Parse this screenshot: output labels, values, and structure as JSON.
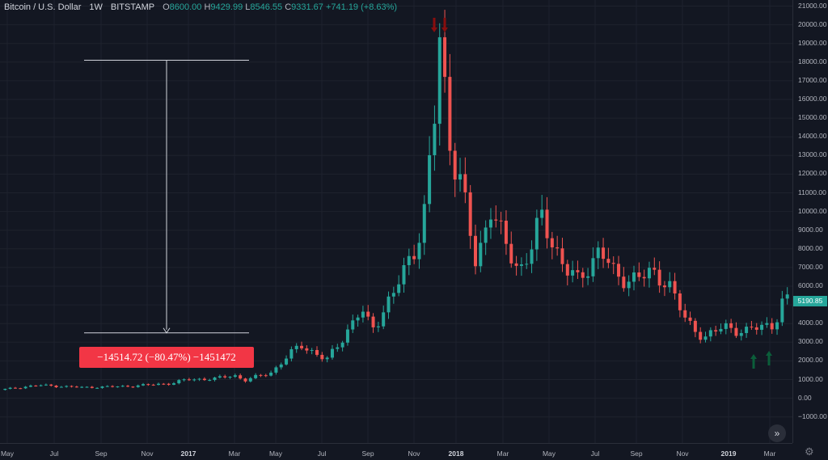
{
  "header": {
    "symbol": "Bitcoin / U.S. Dollar",
    "interval": "1W",
    "exchange": "BITSTAMP",
    "open_label": "O",
    "open": "8600.00",
    "high_label": "H",
    "high": "9429.99",
    "low_label": "L",
    "low": "8546.55",
    "close_label": "C",
    "close": "9331.67",
    "change": "+741.19 (+8.63%)"
  },
  "price_axis": {
    "labels": [
      "21000.00",
      "20000.00",
      "19000.00",
      "18000.00",
      "17000.00",
      "16000.00",
      "15000.00",
      "14000.00",
      "13000.00",
      "12000.00",
      "11000.00",
      "10000.00",
      "9000.00",
      "8000.00",
      "7000.00",
      "6000.00",
      "5000.00",
      "4000.00",
      "3000.00",
      "2000.00",
      "1000.00",
      "0.00",
      "−1000.00"
    ],
    "last_price": "5190.85"
  },
  "time_axis": {
    "labels": [
      {
        "t": "May",
        "bold": false
      },
      {
        "t": "Jul",
        "bold": false
      },
      {
        "t": "Sep",
        "bold": false
      },
      {
        "t": "Nov",
        "bold": false
      },
      {
        "t": "2017",
        "bold": true
      },
      {
        "t": "Mar",
        "bold": false
      },
      {
        "t": "May",
        "bold": false
      },
      {
        "t": "Jul",
        "bold": false
      },
      {
        "t": "Sep",
        "bold": false
      },
      {
        "t": "Nov",
        "bold": false
      },
      {
        "t": "2018",
        "bold": true
      },
      {
        "t": "Mar",
        "bold": false
      },
      {
        "t": "May",
        "bold": false
      },
      {
        "t": "Jul",
        "bold": false
      },
      {
        "t": "Sep",
        "bold": false
      },
      {
        "t": "Nov",
        "bold": false
      },
      {
        "t": "2019",
        "bold": true
      },
      {
        "t": "Mar",
        "bold": false
      }
    ]
  },
  "measure": {
    "label": "−14514.72 (−80.47%) −1451472"
  },
  "colors": {
    "up": "#26a69a",
    "down": "#ef5350",
    "background": "#131722",
    "grid": "#1e222d",
    "arrow_down": "#880e0e",
    "arrow_up": "#0b5e3a",
    "measure": "#f23645"
  },
  "icons": {
    "scroll_button": "double-chevron-right-icon",
    "settings": "gear-icon"
  },
  "chart_data": {
    "type": "candlestick",
    "interval": "1W",
    "ylim": [
      -1300,
      21400
    ],
    "x_range": [
      "2016-04-24",
      "2019-04-14"
    ],
    "series": [
      {
        "name": "close",
        "y_anchor": [
          [
            "2016-04-24",
            450
          ],
          [
            "2016-06-15",
            700
          ],
          [
            "2016-08-15",
            580
          ],
          [
            "2016-10-15",
            640
          ],
          [
            "2016-12-15",
            800
          ],
          [
            "2017-01-05",
            1000
          ],
          [
            "2017-02-15",
            1050
          ],
          [
            "2017-03-10",
            1250
          ],
          [
            "2017-03-25",
            950
          ],
          [
            "2017-05-01",
            1400
          ],
          [
            "2017-05-25",
            2300
          ],
          [
            "2017-06-10",
            2900
          ],
          [
            "2017-07-15",
            2000
          ],
          [
            "2017-08-05",
            3200
          ],
          [
            "2017-09-01",
            4700
          ],
          [
            "2017-09-15",
            3700
          ],
          [
            "2017-10-15",
            5600
          ],
          [
            "2017-11-01",
            7000
          ],
          [
            "2017-11-25",
            9500
          ],
          [
            "2017-12-10",
            15000
          ],
          [
            "2017-12-17",
            19000
          ],
          [
            "2017-12-31",
            14000
          ],
          [
            "2018-01-15",
            11500
          ],
          [
            "2018-02-05",
            7000
          ],
          [
            "2018-02-25",
            10500
          ],
          [
            "2018-03-15",
            8200
          ],
          [
            "2018-04-05",
            6800
          ],
          [
            "2018-05-05",
            9500
          ],
          [
            "2018-06-01",
            7500
          ],
          [
            "2018-06-25",
            6100
          ],
          [
            "2018-07-25",
            8200
          ],
          [
            "2018-08-15",
            6300
          ],
          [
            "2018-09-15",
            6600
          ],
          [
            "2018-10-25",
            6400
          ],
          [
            "2018-11-20",
            4000
          ],
          [
            "2018-12-15",
            3300
          ],
          [
            "2019-01-10",
            3800
          ],
          [
            "2019-02-10",
            3600
          ],
          [
            "2019-03-20",
            4000
          ],
          [
            "2019-04-01",
            5190
          ]
        ]
      }
    ],
    "annotations": [
      {
        "type": "measure",
        "from": 18100,
        "to": 3500,
        "label": "−14514.72 (−80.47%) −1451472"
      },
      {
        "type": "arrow",
        "direction": "down",
        "count": 2,
        "at": "2017-12-17"
      },
      {
        "type": "arrow",
        "direction": "up",
        "count": 2,
        "at": "2019-02-10"
      }
    ]
  }
}
